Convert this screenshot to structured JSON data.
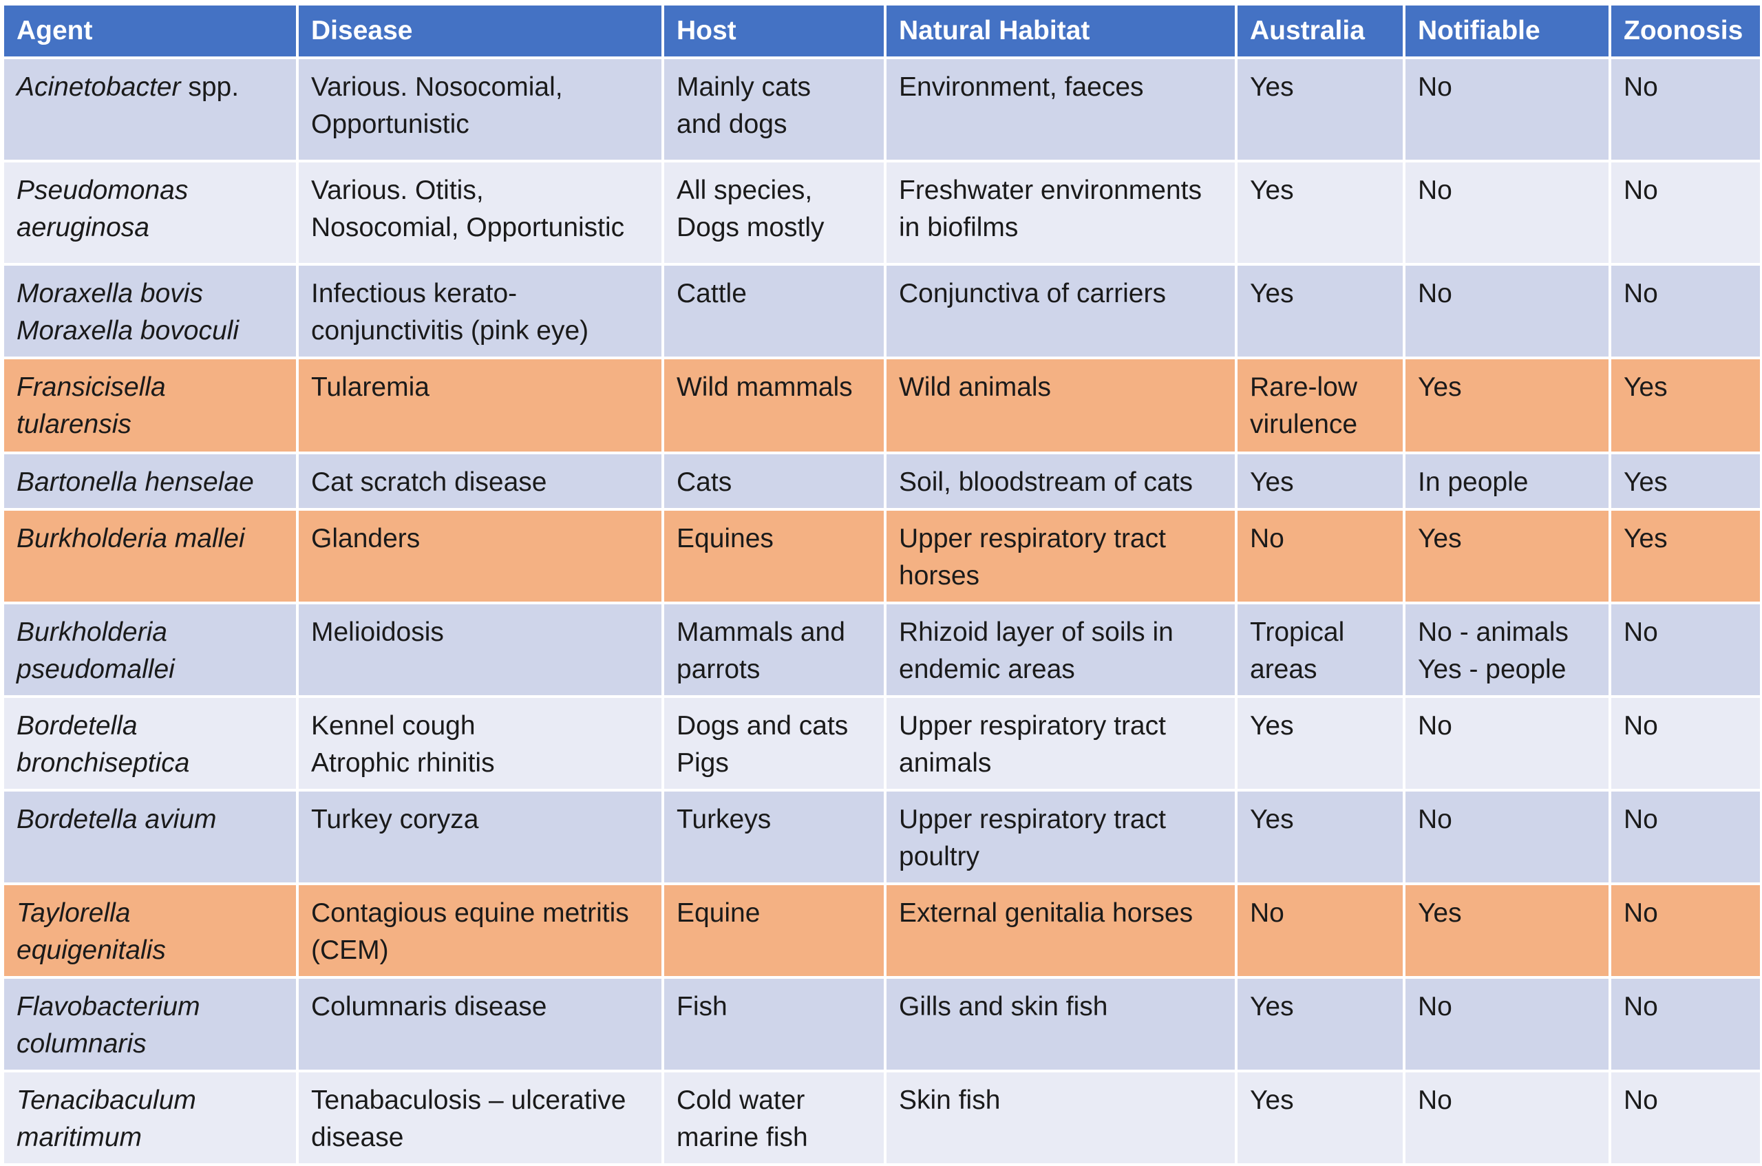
{
  "table": {
    "headers": [
      "Agent",
      "Disease",
      "Host",
      "Natural Habitat",
      "Australia",
      "Notifiable",
      "Zoonosis"
    ],
    "rows": [
      {
        "highlight": false,
        "height": 150,
        "cells": [
          {
            "italic_prefix": "Acinetobacter",
            "suffix": " spp."
          },
          [
            "Various. Nosocomial,",
            "Opportunistic"
          ],
          [
            "Mainly cats",
            "and dogs"
          ],
          [
            "Environment, faeces"
          ],
          [
            "Yes"
          ],
          [
            "No"
          ],
          [
            "No"
          ]
        ]
      },
      {
        "highlight": false,
        "height": 150,
        "cells": [
          [
            "Pseudomonas",
            "aeruginosa"
          ],
          [
            "Various. Otitis,",
            "Nosocomial, Opportunistic"
          ],
          [
            "All species,",
            "Dogs mostly"
          ],
          [
            "Freshwater environments",
            "in biofilms"
          ],
          [
            "Yes"
          ],
          [
            "No"
          ],
          [
            "No"
          ]
        ]
      },
      {
        "highlight": false,
        "height": 130,
        "cells": [
          [
            "Moraxella bovis",
            "Moraxella bovoculi"
          ],
          [
            "Infectious kerato-",
            "conjunctivitis (pink eye)"
          ],
          [
            "Cattle"
          ],
          [
            "Conjunctiva of carriers"
          ],
          [
            "Yes"
          ],
          [
            "No"
          ],
          [
            "No"
          ]
        ]
      },
      {
        "highlight": true,
        "height": 138,
        "cells": [
          [
            "Fransicisella",
            "tularensis"
          ],
          [
            "Tularemia"
          ],
          [
            "Wild mammals"
          ],
          [
            "Wild animals"
          ],
          [
            "Rare-low",
            "virulence"
          ],
          [
            "Yes"
          ],
          [
            "Yes"
          ]
        ]
      },
      {
        "highlight": false,
        "height": 80,
        "cells": [
          [
            "Bartonella henselae"
          ],
          [
            "Cat scratch disease"
          ],
          [
            "Cats"
          ],
          [
            "Soil, bloodstream of cats"
          ],
          [
            "Yes"
          ],
          [
            "In people"
          ],
          [
            "Yes"
          ]
        ]
      },
      {
        "highlight": true,
        "height": 127,
        "cells": [
          [
            "Burkholderia mallei"
          ],
          [
            "Glanders"
          ],
          [
            "Equines"
          ],
          [
            "Upper respiratory tract",
            "horses"
          ],
          [
            "No"
          ],
          [
            "Yes"
          ],
          [
            "Yes"
          ]
        ]
      },
      {
        "highlight": false,
        "height": 127,
        "cells": [
          [
            "Burkholderia",
            "pseudomallei"
          ],
          [
            "Melioidosis"
          ],
          [
            "Mammals and",
            "parrots"
          ],
          [
            "Rhizoid layer of soils in",
            "endemic areas"
          ],
          [
            "Tropical",
            "areas"
          ],
          [
            "No - animals",
            "Yes - people"
          ],
          [
            "No"
          ]
        ]
      },
      {
        "highlight": false,
        "height": 127,
        "cells": [
          [
            "Bordetella",
            "bronchiseptica"
          ],
          [
            "Kennel cough",
            "Atrophic rhinitis"
          ],
          [
            "Dogs and cats",
            "Pigs"
          ],
          [
            "Upper respiratory tract",
            "animals"
          ],
          [
            "Yes"
          ],
          [
            "No"
          ],
          [
            "No"
          ]
        ]
      },
      {
        "highlight": false,
        "height": 127,
        "cells": [
          [
            "Bordetella avium"
          ],
          [
            "Turkey coryza"
          ],
          [
            "Turkeys"
          ],
          [
            "Upper respiratory tract",
            "poultry"
          ],
          [
            "Yes"
          ],
          [
            "No"
          ],
          [
            "No"
          ]
        ]
      },
      {
        "highlight": true,
        "height": 127,
        "cells": [
          [
            "Taylorella",
            "equigenitalis"
          ],
          [
            "Contagious equine metritis",
            "(CEM)"
          ],
          [
            "Equine"
          ],
          [
            "External genitalia horses"
          ],
          [
            "No"
          ],
          [
            "Yes"
          ],
          [
            "No"
          ]
        ]
      },
      {
        "highlight": false,
        "height": 127,
        "cells": [
          [
            "Flavobacterium",
            "columnaris"
          ],
          [
            "Columnaris disease"
          ],
          [
            "Fish"
          ],
          [
            "Gills and skin fish"
          ],
          [
            "Yes"
          ],
          [
            "No"
          ],
          [
            "No"
          ]
        ]
      },
      {
        "highlight": false,
        "height": 127,
        "cells": [
          [
            "Tenacibaculum",
            "maritimum"
          ],
          [
            "Tenabaculosis – ulcerative",
            "disease"
          ],
          [
            "Cold water",
            "marine fish"
          ],
          [
            "Skin fish"
          ],
          [
            "Yes"
          ],
          [
            "No"
          ],
          [
            "No"
          ]
        ]
      }
    ]
  }
}
